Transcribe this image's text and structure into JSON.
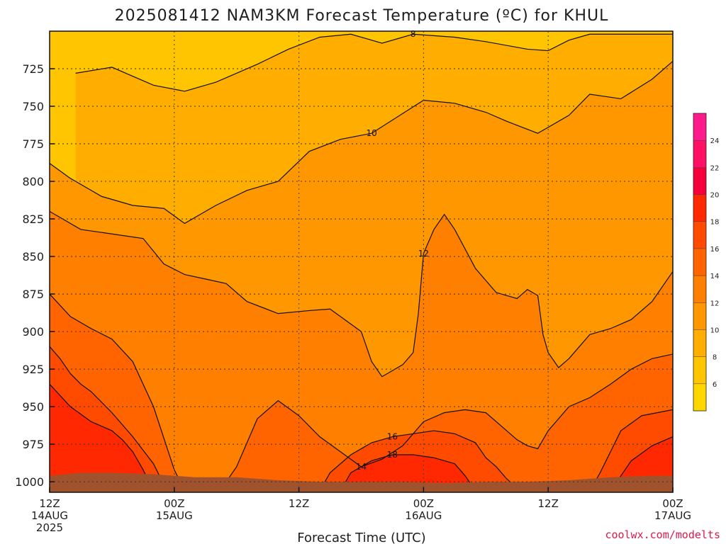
{
  "chart_data": {
    "type": "heatmap",
    "title": "2025081412 NAM3KM Forecast Temperature (ºC) for KHUL",
    "xlabel": "Forecast Time (UTC)",
    "credit": "coolwx.com/modelts",
    "x_ticks": [
      {
        "hours": 0,
        "line1": "12Z",
        "line2": "14AUG",
        "line3": "2025"
      },
      {
        "hours": 12,
        "line1": "00Z",
        "line2": "15AUG",
        "line3": ""
      },
      {
        "hours": 24,
        "line1": "12Z",
        "line2": "",
        "line3": ""
      },
      {
        "hours": 36,
        "line1": "00Z",
        "line2": "16AUG",
        "line3": ""
      },
      {
        "hours": 48,
        "line1": "12Z",
        "line2": "",
        "line3": ""
      },
      {
        "hours": 60,
        "line1": "00Z",
        "line2": "17AUG",
        "line3": ""
      }
    ],
    "x_range_hours": [
      0,
      60
    ],
    "y_ticks": [
      725,
      750,
      775,
      800,
      825,
      850,
      875,
      900,
      925,
      950,
      975,
      1000
    ],
    "y_range_hPa": [
      700,
      1007
    ],
    "y_inverted": true,
    "grid": true,
    "colorbar": {
      "position": "right",
      "ticks": [
        6,
        8,
        10,
        12,
        14,
        16,
        18,
        20,
        22,
        24
      ],
      "bands": [
        {
          "min": 4,
          "max": 6,
          "color": "#ffd700"
        },
        {
          "min": 6,
          "max": 8,
          "color": "#ffc500"
        },
        {
          "min": 8,
          "max": 10,
          "color": "#ffae00"
        },
        {
          "min": 10,
          "max": 12,
          "color": "#ff9800"
        },
        {
          "min": 12,
          "max": 14,
          "color": "#ff7f00"
        },
        {
          "min": 14,
          "max": 16,
          "color": "#ff6400"
        },
        {
          "min": 16,
          "max": 18,
          "color": "#ff4b00"
        },
        {
          "min": 18,
          "max": 20,
          "color": "#ff2800"
        },
        {
          "min": 20,
          "max": 22,
          "color": "#f5003a"
        },
        {
          "min": 22,
          "max": 24,
          "color": "#ff1064"
        },
        {
          "min": 24,
          "max": 26,
          "color": "#ff1a8c"
        }
      ]
    },
    "terrain_color": "#a0522d",
    "series": [
      {
        "contour": 8,
        "points": [
          [
            2.5,
            728
          ],
          [
            6,
            724
          ],
          [
            10,
            736
          ],
          [
            13,
            740
          ],
          [
            16,
            734
          ],
          [
            20,
            722
          ],
          [
            23,
            712
          ],
          [
            26,
            704
          ],
          [
            29,
            702
          ],
          [
            32,
            708
          ],
          [
            35,
            702
          ],
          [
            39,
            704
          ],
          [
            42,
            707
          ],
          [
            46,
            712
          ],
          [
            48,
            713
          ],
          [
            50,
            706
          ],
          [
            52,
            702
          ],
          [
            55,
            702
          ],
          [
            58,
            702
          ],
          [
            60,
            702
          ]
        ]
      },
      {
        "contour": 10,
        "points": [
          [
            0,
            788
          ],
          [
            2,
            798
          ],
          [
            5,
            810
          ],
          [
            8,
            816
          ],
          [
            11,
            818
          ],
          [
            13,
            828
          ],
          [
            16,
            816
          ],
          [
            19,
            806
          ],
          [
            22,
            800
          ],
          [
            25,
            780
          ],
          [
            28,
            772
          ],
          [
            31,
            768
          ],
          [
            36,
            746
          ],
          [
            39,
            748
          ],
          [
            42,
            754
          ],
          [
            44,
            760
          ],
          [
            47,
            768
          ],
          [
            50,
            756
          ],
          [
            52,
            742
          ],
          [
            55,
            745
          ],
          [
            58,
            732
          ],
          [
            60,
            720
          ]
        ]
      },
      {
        "contour": 12,
        "points": [
          [
            0,
            820
          ],
          [
            3,
            832
          ],
          [
            6,
            835
          ],
          [
            9,
            838
          ],
          [
            11,
            855
          ],
          [
            13,
            862
          ],
          [
            15,
            865
          ],
          [
            17,
            868
          ],
          [
            19,
            880
          ],
          [
            22,
            888
          ],
          [
            25,
            886
          ],
          [
            27,
            885
          ],
          [
            30,
            900
          ],
          [
            31,
            920
          ],
          [
            32,
            930
          ],
          [
            33,
            926
          ],
          [
            34,
            922
          ],
          [
            35,
            914
          ],
          [
            35.5,
            888
          ],
          [
            36,
            848
          ],
          [
            37,
            832
          ],
          [
            38,
            822
          ],
          [
            39,
            832
          ],
          [
            41,
            858
          ],
          [
            43,
            874
          ],
          [
            45,
            878
          ],
          [
            46,
            872
          ],
          [
            47,
            876
          ],
          [
            47.5,
            902
          ],
          [
            48,
            914
          ],
          [
            49,
            924
          ],
          [
            50,
            918
          ],
          [
            51,
            910
          ],
          [
            52,
            902
          ],
          [
            54,
            898
          ],
          [
            56,
            892
          ],
          [
            58,
            880
          ],
          [
            60,
            860
          ]
        ]
      },
      {
        "contour": 14,
        "points": [
          [
            0,
            875
          ],
          [
            2,
            890
          ],
          [
            4,
            898
          ],
          [
            6,
            905
          ],
          [
            8,
            920
          ],
          [
            10,
            950
          ],
          [
            12,
            992
          ],
          [
            13,
            1006
          ],
          [
            15,
            1006
          ],
          [
            17,
            1000
          ],
          [
            18,
            990
          ],
          [
            19,
            974
          ],
          [
            20,
            958
          ],
          [
            22,
            946
          ],
          [
            24,
            956
          ],
          [
            26,
            970
          ],
          [
            28,
            980
          ],
          [
            30,
            990
          ],
          [
            32,
            985
          ],
          [
            34,
            976
          ],
          [
            36,
            960
          ],
          [
            38,
            954
          ],
          [
            40,
            952
          ],
          [
            42,
            954
          ],
          [
            44,
            966
          ],
          [
            45,
            972
          ],
          [
            46,
            976
          ],
          [
            47,
            978
          ],
          [
            48,
            966
          ],
          [
            50,
            950
          ],
          [
            52,
            944
          ],
          [
            54,
            935
          ],
          [
            56,
            925
          ],
          [
            58,
            918
          ],
          [
            60,
            915
          ]
        ]
      },
      {
        "contour": 16,
        "points": [
          [
            0,
            910
          ],
          [
            1,
            918
          ],
          [
            2,
            928
          ],
          [
            3,
            935
          ],
          [
            4,
            940
          ],
          [
            6,
            954
          ],
          [
            8,
            970
          ],
          [
            10,
            988
          ],
          [
            11,
            1002
          ],
          [
            13,
            1006
          ],
          [
            26,
            1006
          ],
          [
            27,
            994
          ],
          [
            29,
            982
          ],
          [
            31,
            974
          ],
          [
            33,
            970
          ],
          [
            35,
            968
          ],
          [
            37,
            966
          ],
          [
            39,
            968
          ],
          [
            41,
            974
          ],
          [
            42,
            984
          ],
          [
            43,
            990
          ],
          [
            44,
            998
          ],
          [
            45,
            1004
          ],
          [
            52,
            1006
          ],
          [
            53,
            994
          ],
          [
            54,
            980
          ],
          [
            55,
            966
          ],
          [
            57,
            956
          ],
          [
            60,
            952
          ]
        ]
      },
      {
        "contour": 18,
        "points": [
          [
            0,
            935
          ],
          [
            2,
            950
          ],
          [
            4,
            960
          ],
          [
            6,
            966
          ],
          [
            7,
            972
          ],
          [
            8,
            980
          ],
          [
            9,
            992
          ],
          [
            10,
            1006
          ],
          [
            28,
            1006
          ],
          [
            29,
            994
          ],
          [
            31,
            986
          ],
          [
            33,
            982
          ],
          [
            35,
            982
          ],
          [
            37,
            984
          ],
          [
            39,
            988
          ],
          [
            40,
            996
          ],
          [
            41,
            1006
          ],
          [
            54,
            1006
          ],
          [
            55,
            996
          ],
          [
            56,
            986
          ],
          [
            58,
            976
          ],
          [
            60,
            970
          ]
        ]
      }
    ]
  }
}
